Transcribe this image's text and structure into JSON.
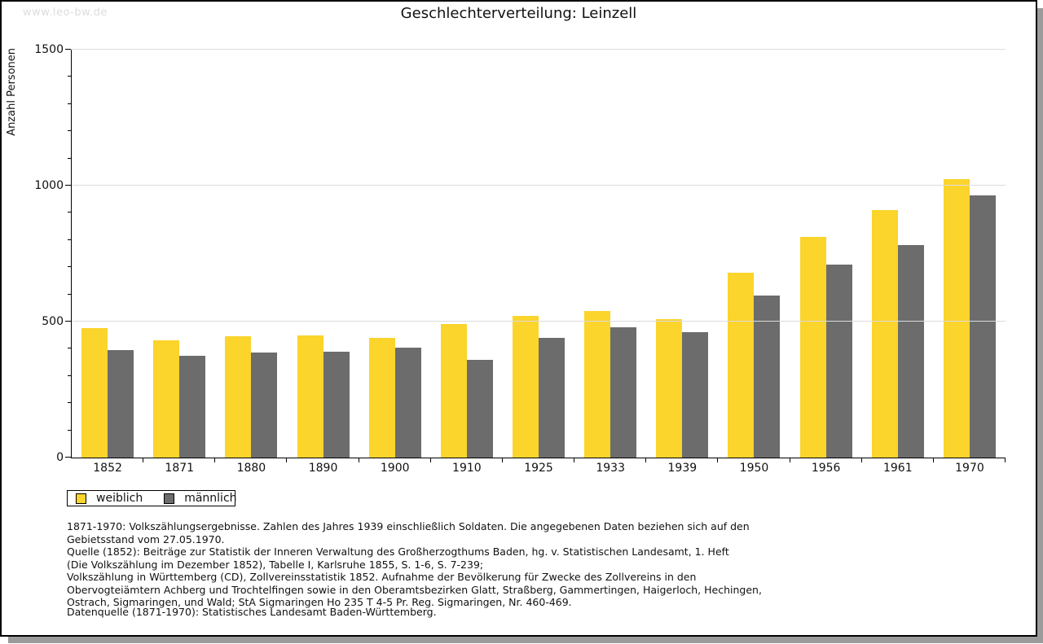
{
  "watermark": "www.leo-bw.de",
  "title": "Geschlechterverteilung: Leinzell",
  "chart_data": {
    "type": "bar",
    "title": "Geschlechterverteilung: Leinzell",
    "xlabel": "",
    "ylabel": "Anzahl Personen",
    "ylim": [
      0,
      1500
    ],
    "ytick_major": [
      0,
      500,
      1000,
      1500
    ],
    "ytick_minor_step": 100,
    "gridline_values": [
      500,
      1000,
      1500
    ],
    "grid": "horizontal",
    "legend_position": "bottom-left",
    "categories": [
      "1852",
      "1871",
      "1880",
      "1890",
      "1900",
      "1910",
      "1925",
      "1933",
      "1939",
      "1950",
      "1956",
      "1961",
      "1970"
    ],
    "series": [
      {
        "name": "weiblich",
        "color": "#FBD42C",
        "values": [
          475,
          430,
          445,
          450,
          440,
          490,
          520,
          540,
          510,
          680,
          810,
          910,
          1025
        ]
      },
      {
        "name": "männlich",
        "color": "#6C6C6C",
        "values": [
          395,
          375,
          385,
          390,
          405,
          360,
          440,
          480,
          460,
          595,
          710,
          780,
          965
        ]
      }
    ]
  },
  "legend": {
    "items": [
      {
        "label": "weiblich",
        "color": "#FBD42C"
      },
      {
        "label": "männlich",
        "color": "#6C6C6C"
      }
    ]
  },
  "notes_lines": [
    "1871-1970: Volkszählungsergebnisse. Zahlen des Jahres 1939 einschließlich Soldaten. Die angegebenen Daten beziehen sich auf den",
    "Gebietsstand vom 27.05.1970.",
    "Quelle (1852): Beiträge zur Statistik der Inneren Verwaltung des Großherzogthums Baden, hg. v. Statistischen Landesamt, 1. Heft",
    "(Die Volkszählung im Dezember 1852), Tabelle I, Karlsruhe 1855, S. 1-6, S. 7-239;",
    "Volkszählung in Württemberg (CD), Zollvereinsstatistik 1852. Aufnahme der Bevölkerung für Zwecke des Zollvereins in den",
    "Obervogteiämtern Achberg und Trochtelfingen sowie in den Oberamtsbezirken Glatt, Straßberg, Gammertingen, Haigerloch, Hechingen,",
    "Ostrach, Sigmaringen, und Wald; StA Sigmaringen Ho 235 T 4-5 Pr. Reg. Sigmaringen, Nr. 460-469."
  ],
  "source_line": "Datenquelle (1871-1970): Statistisches Landesamt Baden-Württemberg.",
  "colors": {
    "grid": "#dcdcdc",
    "axis": "#000000",
    "watermark": "#dcdcdc",
    "shadow": "#9b9b9b"
  }
}
